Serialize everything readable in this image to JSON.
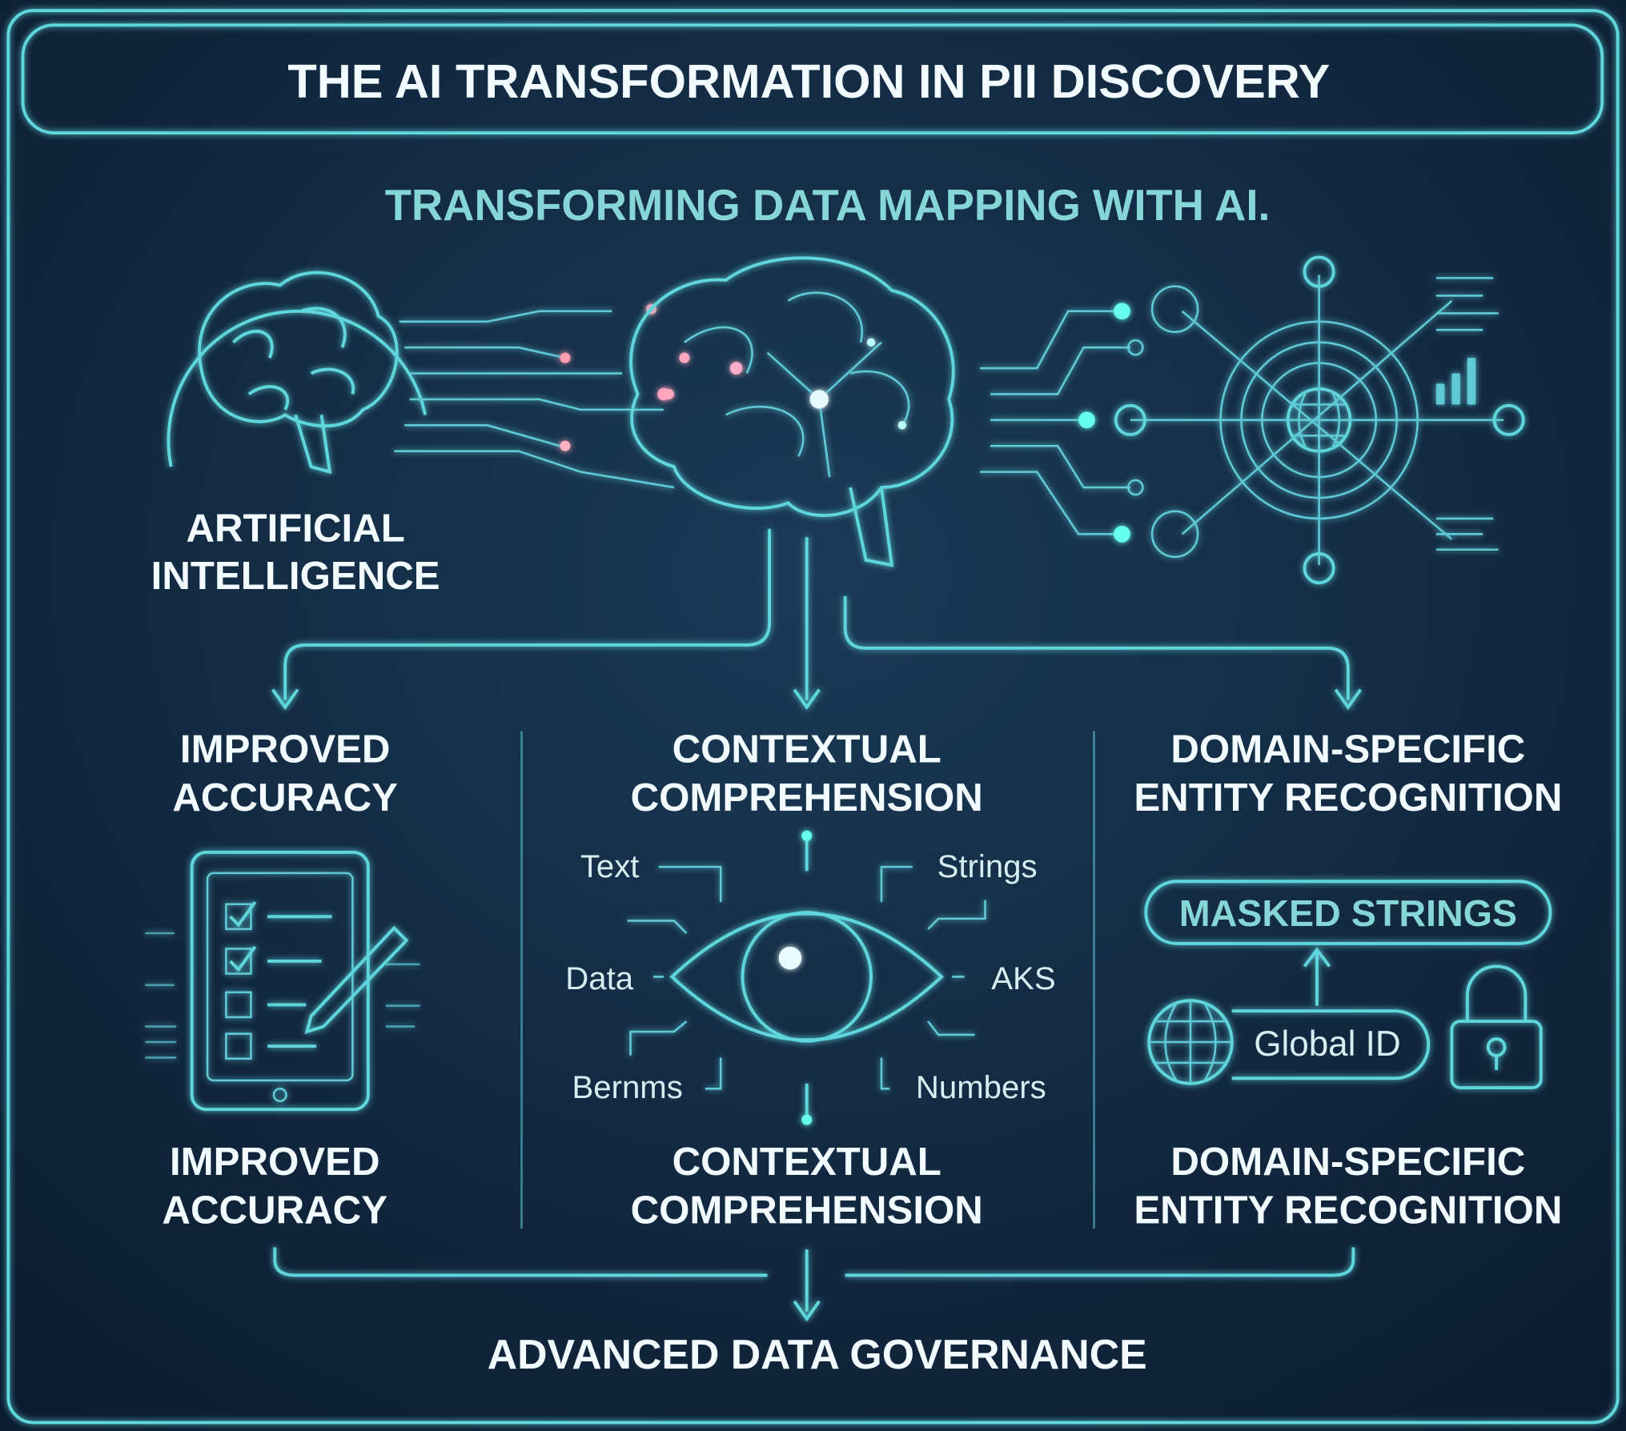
{
  "title": "THE AI TRANSFORMATION IN PII DISCOVERY",
  "subtitle": "TRANSFORMING DATA MAPPING WITH AI.",
  "source": {
    "line1": "ARTIFICIAL",
    "line2": "INTELLIGENCE",
    "icon": "brain-icon"
  },
  "columns": [
    {
      "heading": [
        "IMPROVED",
        "ACCURACY"
      ],
      "caption": [
        "IMPROVED",
        "ACCURACY"
      ],
      "icon": "checklist-tablet-icon"
    },
    {
      "heading": [
        "CONTEXTUAL",
        "COMPREHENSION"
      ],
      "caption": [
        "CONTEXTUAL",
        "COMPREHENSION"
      ],
      "icon": "eye-icon",
      "labels": [
        "Text",
        "Strings",
        "Data",
        "AKS",
        "Bernms",
        "Numbers"
      ]
    },
    {
      "heading": [
        "DOMAIN-SPECIFIC",
        "ENTITY RECOGNITION"
      ],
      "caption": [
        "DOMAIN-SPECIFIC",
        "ENTITY RECOGNITION"
      ],
      "icon": "lock-icon",
      "masked_label": "MASKED STRINGS",
      "global_label": "Global ID"
    }
  ],
  "outcome": "ADVANCED DATA GOVERNANCE",
  "colors": {
    "background": "#0f2238",
    "accent": "#5fd6dc",
    "text": "#f2fbff",
    "subtitle": "#86d6d8"
  }
}
